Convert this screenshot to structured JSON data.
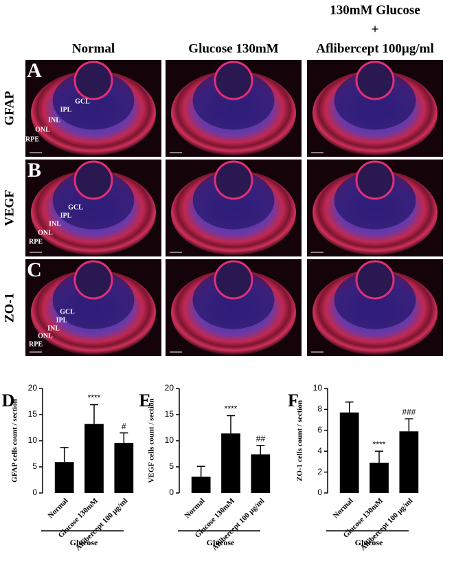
{
  "columns": [
    {
      "lines": [
        "Normal"
      ]
    },
    {
      "lines": [
        "Glucose 130mM"
      ]
    },
    {
      "lines": [
        "130mM Glucose",
        "+",
        "Aflibercept 100µg/ml"
      ]
    }
  ],
  "rows": [
    {
      "letter": "A",
      "label": "GFAP",
      "layers": [
        "GCL",
        "IPL",
        "INL",
        "ONL",
        "RPE"
      ]
    },
    {
      "letter": "B",
      "label": "VEGF",
      "layers": [
        "GCL",
        "IPL",
        "INL",
        "ONL",
        "RPE"
      ]
    },
    {
      "letter": "C",
      "label": "ZO-1",
      "layers": [
        "GCL",
        "IPL",
        "INL",
        "ONL",
        "RPE"
      ]
    }
  ],
  "chart_data": [
    {
      "type": "bar",
      "letter": "D",
      "ylabel": "GFAP cells count / section",
      "group_label": "Glucose",
      "categories": [
        "Normal",
        "Glucose 130mM",
        "Aflibercept 100 µg/ml"
      ],
      "values": [
        5.9,
        13.2,
        9.6
      ],
      "errors": [
        2.8,
        3.7,
        1.9
      ],
      "significance": [
        null,
        "****",
        "#"
      ],
      "color": "#000000",
      "ylim": [
        0,
        20
      ],
      "yticks": [
        0,
        5,
        10,
        15,
        20
      ]
    },
    {
      "type": "bar",
      "letter": "E",
      "ylabel": "VEGF cells count / section",
      "group_label": "Glucose",
      "categories": [
        "Normal",
        "Glucose 130mM",
        "Aflibercept 100 µg/ml"
      ],
      "values": [
        3.1,
        11.4,
        7.4
      ],
      "errors": [
        2.0,
        3.4,
        1.7
      ],
      "significance": [
        null,
        "****",
        "##"
      ],
      "color": "#000000",
      "ylim": [
        0,
        20
      ],
      "yticks": [
        0,
        5,
        10,
        15,
        20
      ]
    },
    {
      "type": "bar",
      "letter": "F",
      "ylabel": "ZO-1 cells count / section",
      "group_label": "Glucose",
      "categories": [
        "Normal",
        "Glucose 130mM",
        "Aflibercept 100 µg/ml"
      ],
      "values": [
        7.7,
        2.9,
        5.9
      ],
      "errors": [
        1.0,
        1.1,
        1.2
      ],
      "significance": [
        null,
        "****",
        "###"
      ],
      "color": "#000000",
      "ylim": [
        0,
        10
      ],
      "yticks": [
        0,
        2,
        4,
        6,
        8,
        10
      ]
    }
  ]
}
